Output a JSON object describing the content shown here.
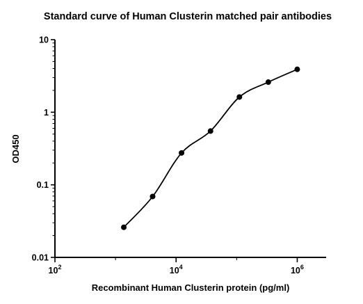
{
  "chart_data": {
    "type": "scatter",
    "title": "Standard curve of Human Clusterin matched pair antibodies",
    "xlabel": "Recombinant Human Clusterin protein (pg/ml)",
    "ylabel": "OD450",
    "x_scale": "log",
    "y_scale": "log",
    "xlim": [
      100,
      3000000
    ],
    "ylim": [
      0.01,
      10
    ],
    "x_ticks": [
      {
        "value": 100,
        "base": "10",
        "exp": "2"
      },
      {
        "value": 10000,
        "base": "10",
        "exp": "4"
      },
      {
        "value": 1000000,
        "base": "10",
        "exp": "6"
      }
    ],
    "y_ticks": [
      {
        "value": 0.01,
        "label": "0.01"
      },
      {
        "value": 0.1,
        "label": "0.1"
      },
      {
        "value": 1,
        "label": "1"
      },
      {
        "value": 10,
        "label": "10"
      }
    ],
    "grid": false,
    "legend": "none",
    "series": [
      {
        "points": [
          {
            "x": 1370,
            "y": 0.026
          },
          {
            "x": 4100,
            "y": 0.069
          },
          {
            "x": 12300,
            "y": 0.275
          },
          {
            "x": 37000,
            "y": 0.55
          },
          {
            "x": 111000,
            "y": 1.62
          },
          {
            "x": 333000,
            "y": 2.6
          },
          {
            "x": 1000000,
            "y": 3.9
          }
        ],
        "fit_curve": true
      }
    ]
  }
}
